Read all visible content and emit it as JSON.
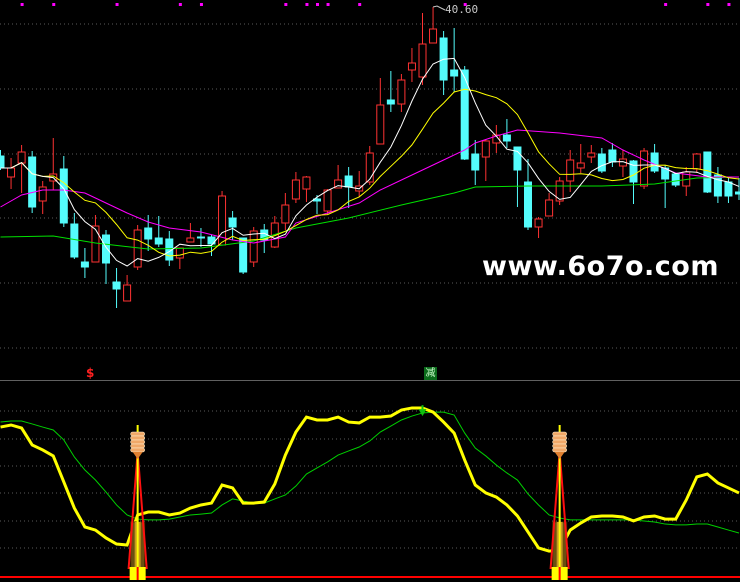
{
  "chart_data": [
    {
      "type": "candlestick",
      "high_label": "40.60",
      "colors": {
        "up": "#ff3232",
        "down": "#54fcfc",
        "ma5": "#ffffff",
        "ma10": "#ffff00",
        "ma20": "#ff00ff",
        "ma60": "#00e000",
        "grid": "#5a5a5a"
      },
      "ylim": [
        22.0,
        41.0
      ],
      "candles": [
        [
          31.66,
          32.02,
          30.82,
          30.94
        ],
        [
          30.4,
          31.54,
          29.68,
          30.94
        ],
        [
          31.24,
          32.32,
          29.44,
          31.9
        ],
        [
          31.6,
          31.96,
          28.24,
          28.6
        ],
        [
          28.96,
          30.16,
          28.18,
          29.8
        ],
        [
          30.16,
          32.74,
          29.62,
          30.58
        ],
        [
          30.88,
          31.66,
          27.4,
          27.64
        ],
        [
          27.58,
          28.24,
          25.48,
          25.6
        ],
        [
          25.3,
          26.14,
          24.34,
          25.0
        ],
        [
          25.3,
          28.12,
          25.3,
          27.46
        ],
        [
          26.92,
          27.22,
          23.98,
          25.24
        ],
        [
          24.1,
          24.94,
          22.54,
          23.68
        ],
        [
          22.96,
          24.52,
          22.96,
          23.92
        ],
        [
          25.0,
          27.52,
          24.82,
          27.22
        ],
        [
          27.34,
          28.12,
          25.96,
          26.68
        ],
        [
          26.74,
          28.06,
          26.2,
          26.38
        ],
        [
          26.68,
          27.16,
          25.06,
          25.42
        ],
        [
          25.54,
          26.14,
          24.88,
          26.14
        ],
        [
          26.5,
          27.64,
          26.5,
          26.74
        ],
        [
          26.8,
          27.34,
          26.2,
          26.78
        ],
        [
          26.8,
          26.92,
          25.66,
          26.38
        ],
        [
          26.32,
          29.56,
          26.32,
          29.26
        ],
        [
          27.94,
          28.36,
          26.62,
          27.4
        ],
        [
          26.74,
          26.74,
          24.58,
          24.7
        ],
        [
          25.3,
          27.4,
          25.0,
          27.16
        ],
        [
          27.22,
          27.58,
          25.84,
          26.62
        ],
        [
          26.2,
          28.06,
          26.14,
          27.64
        ],
        [
          27.64,
          29.44,
          27.22,
          28.72
        ],
        [
          29.08,
          30.7,
          28.84,
          30.22
        ],
        [
          29.68,
          30.46,
          28.9,
          30.4
        ],
        [
          29.08,
          29.32,
          28.18,
          28.96
        ],
        [
          28.36,
          29.68,
          28.18,
          29.62
        ],
        [
          29.74,
          31.12,
          29.74,
          30.22
        ],
        [
          30.46,
          31.0,
          28.54,
          29.8
        ],
        [
          29.56,
          30.76,
          29.2,
          29.86
        ],
        [
          30.1,
          32.26,
          29.92,
          31.84
        ],
        [
          32.38,
          36.34,
          32.38,
          34.72
        ],
        [
          35.02,
          36.76,
          34.3,
          34.78
        ],
        [
          34.78,
          36.58,
          34.3,
          36.22
        ],
        [
          36.82,
          38.14,
          36.1,
          37.24
        ],
        [
          36.4,
          40.24,
          35.92,
          38.38
        ],
        [
          38.44,
          40.6,
          38.44,
          39.28
        ],
        [
          38.74,
          39.16,
          35.32,
          36.22
        ],
        [
          36.82,
          39.34,
          35.5,
          36.46
        ],
        [
          36.82,
          37.06,
          31.42,
          31.48
        ],
        [
          31.78,
          32.62,
          29.92,
          30.82
        ],
        [
          31.6,
          32.68,
          30.16,
          32.56
        ],
        [
          32.44,
          33.52,
          31.84,
          32.92
        ],
        [
          32.92,
          33.88,
          32.14,
          32.56
        ],
        [
          32.2,
          32.2,
          28.6,
          30.82
        ],
        [
          30.1,
          31.48,
          27.22,
          27.4
        ],
        [
          27.4,
          28.0,
          26.74,
          27.88
        ],
        [
          28.06,
          29.44,
          28.06,
          29.02
        ],
        [
          28.96,
          30.4,
          28.72,
          30.16
        ],
        [
          30.16,
          32.02,
          29.5,
          31.42
        ],
        [
          30.94,
          32.38,
          30.64,
          31.24
        ],
        [
          31.6,
          32.32,
          31.24,
          31.84
        ],
        [
          31.78,
          32.14,
          30.64,
          30.76
        ],
        [
          32.02,
          32.44,
          31.0,
          31.3
        ],
        [
          31.06,
          32.02,
          30.4,
          31.48
        ],
        [
          31.36,
          31.42,
          28.78,
          30.1
        ],
        [
          29.86,
          32.14,
          29.68,
          31.96
        ],
        [
          31.84,
          32.38,
          30.64,
          30.76
        ],
        [
          30.94,
          31.12,
          28.54,
          30.28
        ],
        [
          30.58,
          30.58,
          29.8,
          29.92
        ],
        [
          29.86,
          31.0,
          29.26,
          30.7
        ],
        [
          30.88,
          31.84,
          30.64,
          31.78
        ],
        [
          31.9,
          31.9,
          29.44,
          29.5
        ],
        [
          30.52,
          31.0,
          28.84,
          29.26
        ],
        [
          30.1,
          30.4,
          28.84,
          29.26
        ],
        [
          29.5,
          30.34,
          29.02,
          29.38
        ]
      ],
      "ma20": {
        "index": [
          0,
          2,
          4,
          6,
          8,
          10,
          12,
          14,
          16,
          19,
          22,
          24,
          27,
          28,
          31,
          34,
          36,
          39,
          42,
          44,
          45,
          47,
          49,
          53,
          57,
          59,
          61,
          64,
          67,
          70
        ],
        "values": [
          28.6,
          29.32,
          29.62,
          29.62,
          29.44,
          28.84,
          28.24,
          27.7,
          27.34,
          27.1,
          26.62,
          26.44,
          26.8,
          27.64,
          28.24,
          28.84,
          29.62,
          30.52,
          31.42,
          32.02,
          32.44,
          32.86,
          33.22,
          33.04,
          32.74,
          32.02,
          31.42,
          30.64,
          30.4,
          30.4
        ]
      },
      "ma60": {
        "index": [
          0,
          5,
          9,
          14,
          19,
          24,
          28,
          33,
          38,
          43,
          45,
          50,
          57,
          62,
          66,
          70
        ],
        "values": [
          26.8,
          26.86,
          26.44,
          26.08,
          26.14,
          26.56,
          27.34,
          27.94,
          28.72,
          29.44,
          29.8,
          29.86,
          29.86,
          29.98,
          30.34,
          30.4
        ]
      },
      "top_markers": [
        2,
        5,
        11,
        17,
        19,
        27,
        29,
        30,
        31,
        34,
        44,
        63,
        67,
        69
      ],
      "watermark": "www.6o7o.com"
    },
    {
      "type": "line",
      "ylim": [
        0,
        100
      ],
      "series": [
        {
          "color": "#ffff00",
          "values": [
            86.6,
            87.8,
            86.0,
            76.2,
            73.3,
            69.8,
            54.7,
            39.5,
            28.5,
            26.7,
            22.1,
            18.6,
            18.0,
            35.5,
            37.2,
            37.2,
            35.5,
            36.6,
            39.5,
            41.3,
            42.4,
            52.9,
            51.2,
            42.4,
            42.4,
            43.0,
            53.5,
            70.3,
            83.7,
            92.4,
            90.7,
            90.7,
            92.4,
            89.5,
            89.0,
            92.4,
            92.4,
            93.0,
            96.5,
            97.7,
            97.7,
            95.3,
            89.5,
            83.1,
            67.4,
            52.9,
            48.3,
            45.9,
            41.3,
            34.9,
            25.6,
            16.3,
            14.5,
            15.1,
            26.7,
            30.8,
            34.3,
            34.9,
            34.9,
            34.3,
            32.0,
            34.3,
            34.9,
            33.1,
            33.1,
            44.2,
            57.6,
            59.3,
            54.1,
            51.2,
            48.3
          ]
        },
        {
          "color": "#00d000",
          "values": [
            89.5,
            90.1,
            90.1,
            88.4,
            86.6,
            84.9,
            79.1,
            69.2,
            61.6,
            55.8,
            48.8,
            41.3,
            35.5,
            33.1,
            32.6,
            32.6,
            33.1,
            34.3,
            35.5,
            36.0,
            36.6,
            41.3,
            44.8,
            43.6,
            42.4,
            42.4,
            44.8,
            47.1,
            52.3,
            59.3,
            62.8,
            66.3,
            70.3,
            72.7,
            75.0,
            78.5,
            83.7,
            87.2,
            90.7,
            93.0,
            94.8,
            95.3,
            95.3,
            93.6,
            83.1,
            74.4,
            69.8,
            64.5,
            59.9,
            55.8,
            47.7,
            41.3,
            35.5,
            33.7,
            32.6,
            32.6,
            32.6,
            32.6,
            32.6,
            32.6,
            32.6,
            32.0,
            31.4,
            30.2,
            29.7,
            29.7,
            30.2,
            30.2,
            28.5,
            26.7,
            25.0
          ]
        }
      ],
      "buy_signals": [
        13,
        53
      ],
      "sell_arrow": {
        "index": 40,
        "value": 97.0
      },
      "labels": {
        "s_marker": "$",
        "s_index": 8.5,
        "jian_marker": "减",
        "jian_index": 41
      }
    }
  ]
}
